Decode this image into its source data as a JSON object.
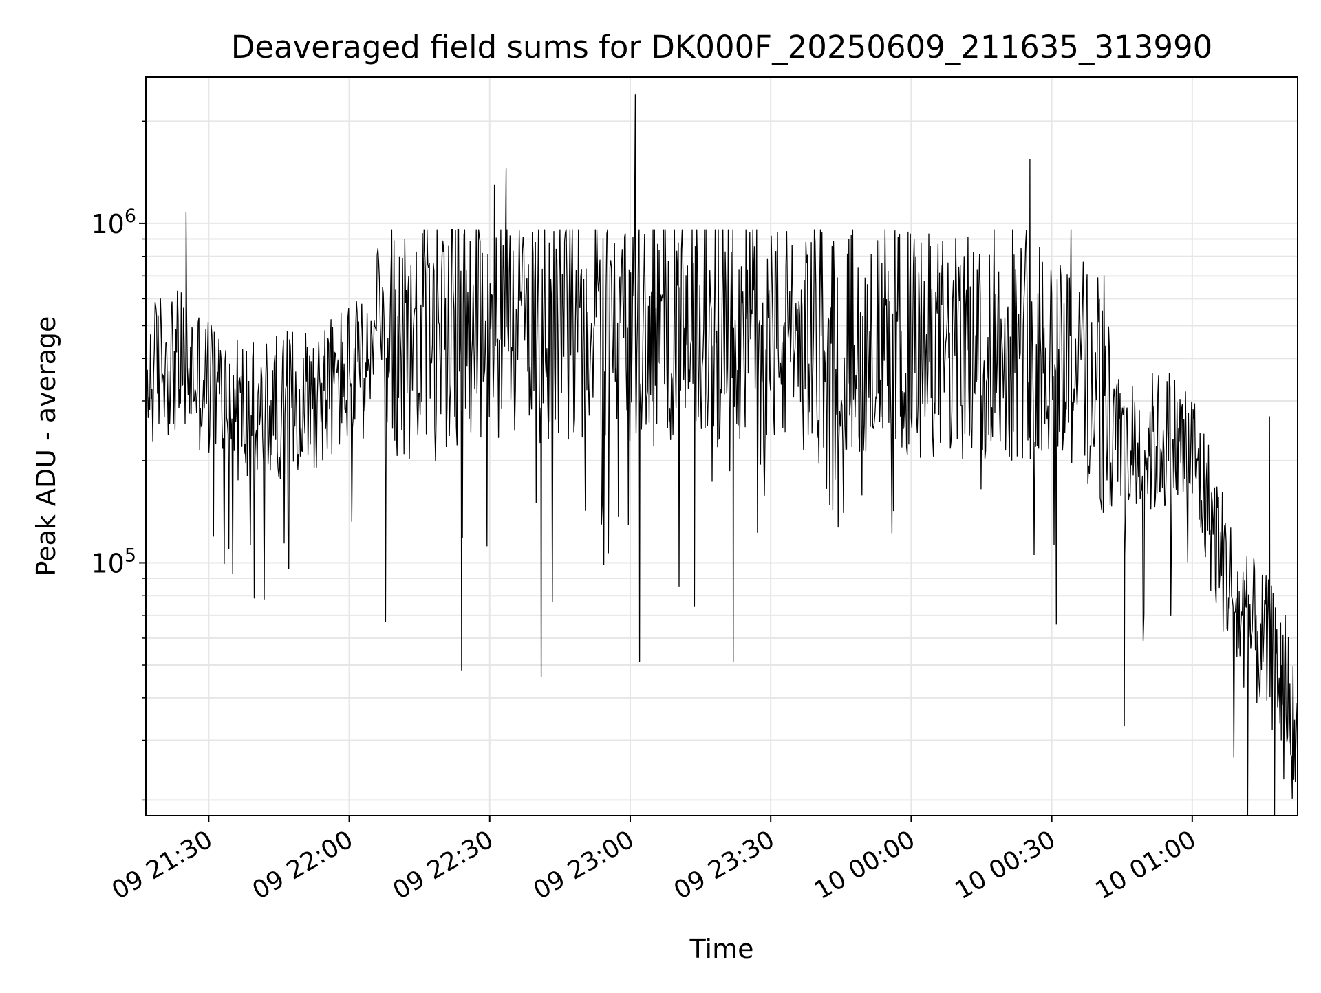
{
  "chart_data": {
    "type": "line",
    "title": "Deaveraged field sums for DK000F_20250609_211635_313990",
    "xlabel": "Time",
    "ylabel": "Peak ADU - average",
    "yscale": "log",
    "x_range": [
      "2025-06-09T21:16:35",
      "2025-06-10T01:22:30"
    ],
    "ylim": [
      18000,
      2700000
    ],
    "x_ticks": [
      "09 21:30",
      "09 22:00",
      "09 22:30",
      "09 23:00",
      "09 23:30",
      "10 00:00",
      "10 00:30",
      "10 01:00"
    ],
    "x_tick_times": [
      "2025-06-09T21:30:00",
      "2025-06-09T22:00:00",
      "2025-06-09T22:30:00",
      "2025-06-09T23:00:00",
      "2025-06-09T23:30:00",
      "2025-06-10T00:00:00",
      "2025-06-10T00:30:00",
      "2025-06-10T01:00:00"
    ],
    "y_major_ticks": [
      {
        "value": 100000,
        "base": "10",
        "exp": "5"
      },
      {
        "value": 1000000,
        "base": "10",
        "exp": "6"
      }
    ],
    "grid": true,
    "line_color": "#000000",
    "series": [
      {
        "x": [
          "2025-06-09T21:16:35",
          "2025-06-09T21:20:00",
          "2025-06-09T21:25:00",
          "2025-06-09T21:30:00",
          "2025-06-09T21:35:00",
          "2025-06-09T21:40:00",
          "2025-06-09T21:45:00",
          "2025-06-09T21:50:00",
          "2025-06-09T21:55:00",
          "2025-06-09T22:00:00",
          "2025-06-09T22:05:00",
          "2025-06-09T22:10:00",
          "2025-06-09T22:15:00",
          "2025-06-09T22:20:00",
          "2025-06-09T22:25:00",
          "2025-06-09T22:30:00",
          "2025-06-09T22:35:00",
          "2025-06-09T22:40:00",
          "2025-06-09T22:45:00",
          "2025-06-09T22:50:00",
          "2025-06-09T22:55:00",
          "2025-06-09T23:00:00",
          "2025-06-09T23:05:00",
          "2025-06-09T23:10:00",
          "2025-06-09T23:15:00",
          "2025-06-09T23:20:00",
          "2025-06-09T23:25:00",
          "2025-06-09T23:30:00",
          "2025-06-09T23:35:00",
          "2025-06-09T23:40:00",
          "2025-06-09T23:45:00",
          "2025-06-09T23:50:00",
          "2025-06-09T23:55:00",
          "2025-06-10T00:00:00",
          "2025-06-10T00:05:00",
          "2025-06-10T00:10:00",
          "2025-06-10T00:15:00",
          "2025-06-10T00:20:00",
          "2025-06-10T00:25:00",
          "2025-06-10T00:30:00",
          "2025-06-10T00:35:00",
          "2025-06-10T00:40:00",
          "2025-06-10T00:45:00",
          "2025-06-10T00:50:00",
          "2025-06-10T00:55:00",
          "2025-06-10T01:00:00",
          "2025-06-10T01:05:00",
          "2025-06-10T01:10:00",
          "2025-06-10T01:15:00",
          "2025-06-10T01:20:00",
          "2025-06-10T01:22:30"
        ],
        "y": [
          330000,
          400000,
          380000,
          330000,
          290000,
          270000,
          290000,
          310000,
          320000,
          360000,
          380000,
          420000,
          450000,
          460000,
          480000,
          490000,
          500000,
          470000,
          480000,
          490000,
          500000,
          490000,
          500000,
          480000,
          490000,
          470000,
          480000,
          470000,
          450000,
          460000,
          450000,
          460000,
          450000,
          440000,
          430000,
          420000,
          430000,
          430000,
          440000,
          440000,
          400000,
          320000,
          200000,
          220000,
          230000,
          210000,
          120000,
          70000,
          58000,
          45000,
          25000
        ],
        "peaks": [
          {
            "x": "2025-06-09T23:01:05",
            "y": 2400000
          },
          {
            "x": "2025-06-10T00:25:20",
            "y": 1550000
          },
          {
            "x": "2025-06-09T22:33:30",
            "y": 1450000
          },
          {
            "x": "2025-06-09T22:31:00",
            "y": 1300000
          },
          {
            "x": "2025-06-09T21:25:10",
            "y": 1080000
          },
          {
            "x": "2025-06-10T01:16:30",
            "y": 270000
          }
        ],
        "troughs": [
          {
            "x": "2025-06-09T22:24:00",
            "y": 48000
          },
          {
            "x": "2025-06-09T22:41:00",
            "y": 46000
          },
          {
            "x": "2025-06-09T23:02:00",
            "y": 51000
          },
          {
            "x": "2025-06-09T23:22:00",
            "y": 51000
          },
          {
            "x": "2025-06-10T00:45:30",
            "y": 33000
          },
          {
            "x": "2025-06-10T01:19:00",
            "y": 30000
          },
          {
            "x": "2025-06-10T01:22:30",
            "y": 23000
          }
        ]
      }
    ]
  }
}
